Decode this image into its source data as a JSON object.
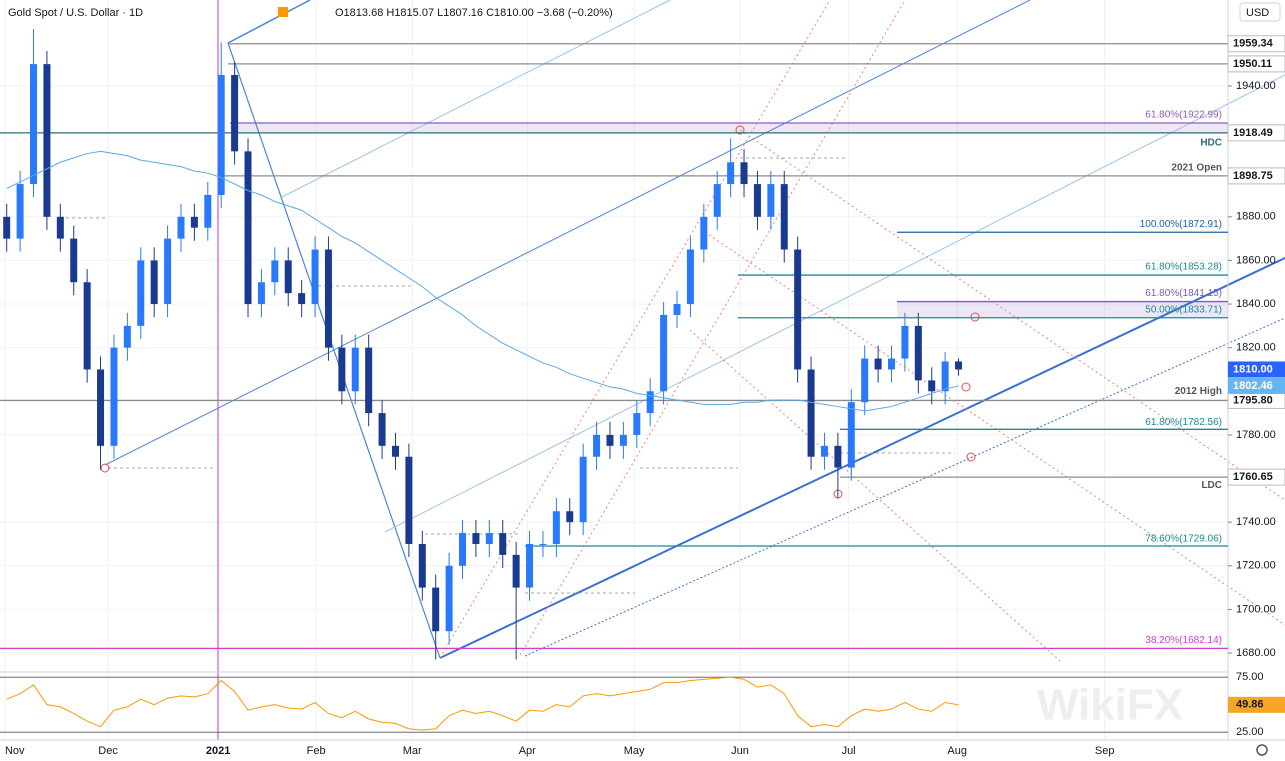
{
  "chart_data": {
    "type": "candlestick",
    "title": "Gold Spot / U.S. Dollar · 1D",
    "ohlc": "O1813.68 H1815.07 L1807.16 C1810.00 −3.68 (−0.20%)",
    "currency": "USD",
    "watermark": "WikiFX",
    "grid": true,
    "xlim": [
      -0.5,
      91.1
    ],
    "xticks": [
      {
        "value": -0.13,
        "label": "Nov"
      },
      {
        "value": 7.56,
        "label": "Dec"
      },
      {
        "value": 15.77,
        "label": "2021"
      },
      {
        "value": 23.08,
        "label": "Feb"
      },
      {
        "value": 30.25,
        "label": "Mar"
      },
      {
        "value": 38.83,
        "label": "Apr"
      },
      {
        "value": 46.8,
        "label": "May"
      },
      {
        "value": 54.7,
        "label": "Jun"
      },
      {
        "value": 62.8,
        "label": "Jul"
      },
      {
        "value": 70.9,
        "label": "Aug"
      },
      {
        "value": 81.9,
        "label": "Sep"
      }
    ],
    "ylim": [
      1671.3,
      1979.4
    ],
    "yticks": [
      {
        "value": 1680,
        "label": "1680.00"
      },
      {
        "value": 1700,
        "label": "1700.00"
      },
      {
        "value": 1720,
        "label": "1720.00"
      },
      {
        "value": 1740,
        "label": "1740.00"
      },
      {
        "value": 1780,
        "label": "1780.00"
      },
      {
        "value": 1820,
        "label": "1820.00"
      },
      {
        "value": 1840,
        "label": "1840.00"
      },
      {
        "value": 1860,
        "label": "1860.00"
      },
      {
        "value": 1880,
        "label": "1880.00"
      },
      {
        "value": 1940,
        "label": "1940.00"
      }
    ],
    "candles": {
      "up_color": "#2979ff",
      "down_color": "#1a3a8f",
      "open": [
        1880,
        1870,
        1895,
        1950,
        1880,
        1870,
        1850,
        1810,
        1775,
        1820,
        1830,
        1860,
        1840,
        1870,
        1880,
        1875,
        1890,
        1945,
        1910,
        1840,
        1850,
        1860,
        1845,
        1840,
        1865,
        1820,
        1800,
        1820,
        1790,
        1775,
        1770,
        1730,
        1710,
        1690,
        1720,
        1735,
        1730,
        1735,
        1725,
        1710,
        1730,
        1730,
        1745,
        1740,
        1770,
        1780,
        1775,
        1780,
        1790,
        1800,
        1835,
        1840,
        1865,
        1880,
        1895,
        1905,
        1895,
        1880,
        1895,
        1865,
        1810,
        1770,
        1775,
        1765,
        1795,
        1815,
        1810,
        1815,
        1830,
        1805,
        1800,
        1813.68
      ],
      "high": [
        1886,
        1901,
        1966,
        1956,
        1886,
        1876,
        1856,
        1816,
        1826,
        1836,
        1866,
        1866,
        1876,
        1886,
        1886,
        1896,
        1960,
        1951,
        1916,
        1856,
        1866,
        1866,
        1851,
        1871,
        1871,
        1826,
        1826,
        1826,
        1796,
        1781,
        1776,
        1736,
        1716,
        1726,
        1741,
        1741,
        1741,
        1741,
        1731,
        1736,
        1736,
        1751,
        1751,
        1776,
        1786,
        1786,
        1786,
        1796,
        1806,
        1841,
        1846,
        1871,
        1886,
        1901,
        1916,
        1911,
        1901,
        1901,
        1901,
        1871,
        1816,
        1781,
        1781,
        1801,
        1821,
        1821,
        1821,
        1836,
        1836,
        1811,
        1818,
        1815.07
      ],
      "low": [
        1864,
        1864,
        1889,
        1874,
        1864,
        1844,
        1804,
        1764,
        1769,
        1814,
        1824,
        1834,
        1834,
        1864,
        1869,
        1869,
        1884,
        1904,
        1834,
        1834,
        1844,
        1839,
        1834,
        1834,
        1814,
        1794,
        1794,
        1784,
        1769,
        1764,
        1724,
        1704,
        1677,
        1684,
        1714,
        1724,
        1724,
        1719,
        1677,
        1704,
        1724,
        1724,
        1734,
        1734,
        1764,
        1769,
        1769,
        1774,
        1784,
        1794,
        1829,
        1834,
        1859,
        1874,
        1889,
        1889,
        1874,
        1874,
        1859,
        1804,
        1764,
        1764,
        1751,
        1759,
        1789,
        1804,
        1804,
        1809,
        1799,
        1794,
        1794,
        1807.16
      ],
      "close": [
        1870,
        1895,
        1950,
        1880,
        1870,
        1850,
        1810,
        1775,
        1820,
        1830,
        1860,
        1840,
        1870,
        1880,
        1875,
        1890,
        1945,
        1910,
        1840,
        1850,
        1860,
        1845,
        1840,
        1865,
        1820,
        1800,
        1820,
        1790,
        1775,
        1770,
        1730,
        1710,
        1690,
        1720,
        1735,
        1730,
        1735,
        1725,
        1710,
        1730,
        1730,
        1745,
        1740,
        1770,
        1780,
        1775,
        1780,
        1790,
        1800,
        1835,
        1840,
        1865,
        1880,
        1895,
        1905,
        1895,
        1880,
        1895,
        1865,
        1810,
        1770,
        1775,
        1765,
        1795,
        1815,
        1810,
        1815,
        1830,
        1805,
        1800,
        1813.68,
        1810
      ]
    },
    "last_price": {
      "value": 1810,
      "label": "1810.00"
    },
    "ma": {
      "color": "#5aa9e6",
      "values": [
        1893,
        1896,
        1899,
        1902,
        1905,
        1907,
        1909,
        1910,
        1909,
        1908,
        1906,
        1905,
        1904,
        1903,
        1901,
        1900,
        1898,
        1895,
        1892,
        1890,
        1887,
        1885,
        1883,
        1879,
        1875,
        1871,
        1868,
        1864,
        1860,
        1856,
        1852,
        1848,
        1843,
        1839,
        1835,
        1830,
        1826,
        1822,
        1819,
        1816,
        1813,
        1811,
        1808,
        1806,
        1804,
        1802,
        1801,
        1799,
        1798,
        1797,
        1796,
        1795,
        1794,
        1794,
        1794,
        1795,
        1795,
        1796,
        1796,
        1796,
        1795,
        1794,
        1793,
        1792,
        1791,
        1792,
        1793,
        1795,
        1797,
        1799,
        1801,
        1802.46
      ]
    },
    "levels": [
      {
        "value": 1959.34,
        "color": "#8c8c8c",
        "axis_label": "1959.34"
      },
      {
        "value": 1950.11,
        "color": "#8c8c8c",
        "axis_label": "1950.11"
      },
      {
        "value": 1922.99,
        "color": "#8e5bc4",
        "text": "61.80%(1922.99)"
      },
      {
        "value": 1918.49,
        "color": "#2b6f7e",
        "text": "HDC",
        "axis_label": "1918.49"
      },
      {
        "value": 1898.75,
        "color": "#8c8c8c",
        "text": "2021 Open",
        "axis_label": "1898.75"
      },
      {
        "value": 1872.91,
        "color": "#1f5fa8",
        "text": "100.00%(1872.91)"
      },
      {
        "value": 1853.28,
        "color": "#1b8a9a",
        "text": "61.80%(1853.28)"
      },
      {
        "value": 1841.15,
        "color": "#7e57c2",
        "text": "61.80%(1841.15)"
      },
      {
        "value": 1833.71,
        "color": "#1b8a9a",
        "text": "50.00%(1833.71)"
      },
      {
        "value": 1795.8,
        "color": "#8c8c8c",
        "text": "2012 High",
        "axis_label": "1795.80"
      },
      {
        "value": 1782.56,
        "color": "#1b8a9a",
        "text": "61.80%(1782.56)"
      },
      {
        "value": 1760.65,
        "color": "#8c8c8c",
        "text": "LDC",
        "axis_label": "1760.65"
      },
      {
        "value": 1729.06,
        "color": "#1b8a9a",
        "text": "78.60%(1729.06)"
      },
      {
        "value": 1682.14,
        "color": "#d040d0",
        "text": "38.20%(1682.14)"
      }
    ],
    "rsi": {
      "color": "#ff9800",
      "ylim": [
        17.9,
        79.7
      ],
      "yticks": [
        {
          "value": 25,
          "label": "25.00"
        },
        {
          "value": 75,
          "label": "75.00"
        }
      ],
      "values": [
        55,
        60,
        68,
        50,
        48,
        42,
        35,
        30,
        45,
        48,
        55,
        50,
        56,
        58,
        57,
        60,
        72,
        62,
        45,
        48,
        50,
        47,
        46,
        52,
        42,
        38,
        44,
        37,
        34,
        33,
        28,
        27,
        28,
        40,
        45,
        42,
        44,
        40,
        35,
        45,
        44,
        50,
        48,
        58,
        60,
        58,
        60,
        62,
        64,
        70,
        70,
        72,
        73,
        74,
        75,
        73,
        66,
        68,
        60,
        40,
        30,
        32,
        30,
        40,
        46,
        44,
        46,
        52,
        46,
        44,
        52,
        49.86
      ]
    }
  }
}
